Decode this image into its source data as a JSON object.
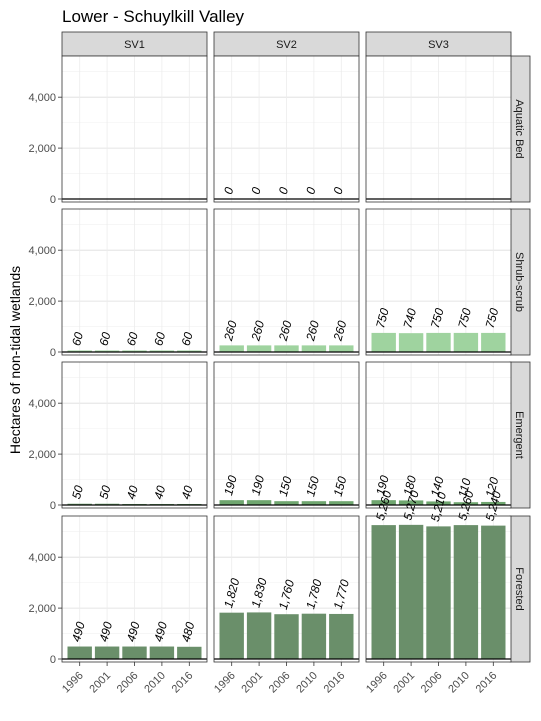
{
  "chart_data": {
    "type": "bar",
    "title": "Lower - Schuylkill Valley",
    "ylabel": "Hectares of non-tidal wetlands",
    "xlabel": "",
    "categories": [
      "1996",
      "2001",
      "2006",
      "2010",
      "2016"
    ],
    "columns": [
      "SV1",
      "SV2",
      "SV3"
    ],
    "rows": [
      "Aquatic Bed",
      "Shrub-scrub",
      "Emergent",
      "Forested"
    ],
    "ylim": [
      0,
      5500
    ],
    "yticks": [
      0,
      2000,
      4000
    ],
    "ytick_labels": [
      "0",
      "2,000",
      "4,000"
    ],
    "grid": true,
    "colors": {
      "Aquatic Bed": "#9fd39f",
      "Shrub-scrub": "#9fd39f",
      "Emergent": "#6fa66f",
      "Forested": "#6a8f6a"
    },
    "panels": [
      {
        "row": "Aquatic Bed",
        "column": "SV1",
        "values": [],
        "labels": []
      },
      {
        "row": "Aquatic Bed",
        "column": "SV2",
        "values": [
          0,
          0,
          0,
          0,
          0
        ],
        "labels": [
          "0",
          "0",
          "0",
          "0",
          "0"
        ]
      },
      {
        "row": "Aquatic Bed",
        "column": "SV3",
        "values": [],
        "labels": []
      },
      {
        "row": "Shrub-scrub",
        "column": "SV1",
        "values": [
          60,
          60,
          60,
          60,
          60
        ],
        "labels": [
          "60",
          "60",
          "60",
          "60",
          "60"
        ]
      },
      {
        "row": "Shrub-scrub",
        "column": "SV2",
        "values": [
          260,
          260,
          260,
          260,
          260
        ],
        "labels": [
          "260",
          "260",
          "260",
          "260",
          "260"
        ]
      },
      {
        "row": "Shrub-scrub",
        "column": "SV3",
        "values": [
          750,
          740,
          750,
          750,
          750
        ],
        "labels": [
          "750",
          "740",
          "750",
          "750",
          "750"
        ]
      },
      {
        "row": "Emergent",
        "column": "SV1",
        "values": [
          50,
          50,
          40,
          40,
          40
        ],
        "labels": [
          "50",
          "50",
          "40",
          "40",
          "40"
        ]
      },
      {
        "row": "Emergent",
        "column": "SV2",
        "values": [
          190,
          190,
          150,
          150,
          150
        ],
        "labels": [
          "190",
          "190",
          "150",
          "150",
          "150"
        ]
      },
      {
        "row": "Emergent",
        "column": "SV3",
        "values": [
          190,
          180,
          140,
          110,
          120
        ],
        "labels": [
          "190",
          "180",
          "140",
          "110",
          "120"
        ]
      },
      {
        "row": "Forested",
        "column": "SV1",
        "values": [
          490,
          490,
          490,
          490,
          480
        ],
        "labels": [
          "490",
          "490",
          "490",
          "490",
          "480"
        ]
      },
      {
        "row": "Forested",
        "column": "SV2",
        "values": [
          1820,
          1830,
          1760,
          1780,
          1770
        ],
        "labels": [
          "1,820",
          "1,830",
          "1,760",
          "1,780",
          "1,770"
        ]
      },
      {
        "row": "Forested",
        "column": "SV3",
        "values": [
          5260,
          5270,
          5210,
          5260,
          5240
        ],
        "labels": [
          "5,260",
          "5,270",
          "5,210",
          "5,260",
          "5,240"
        ]
      }
    ]
  }
}
